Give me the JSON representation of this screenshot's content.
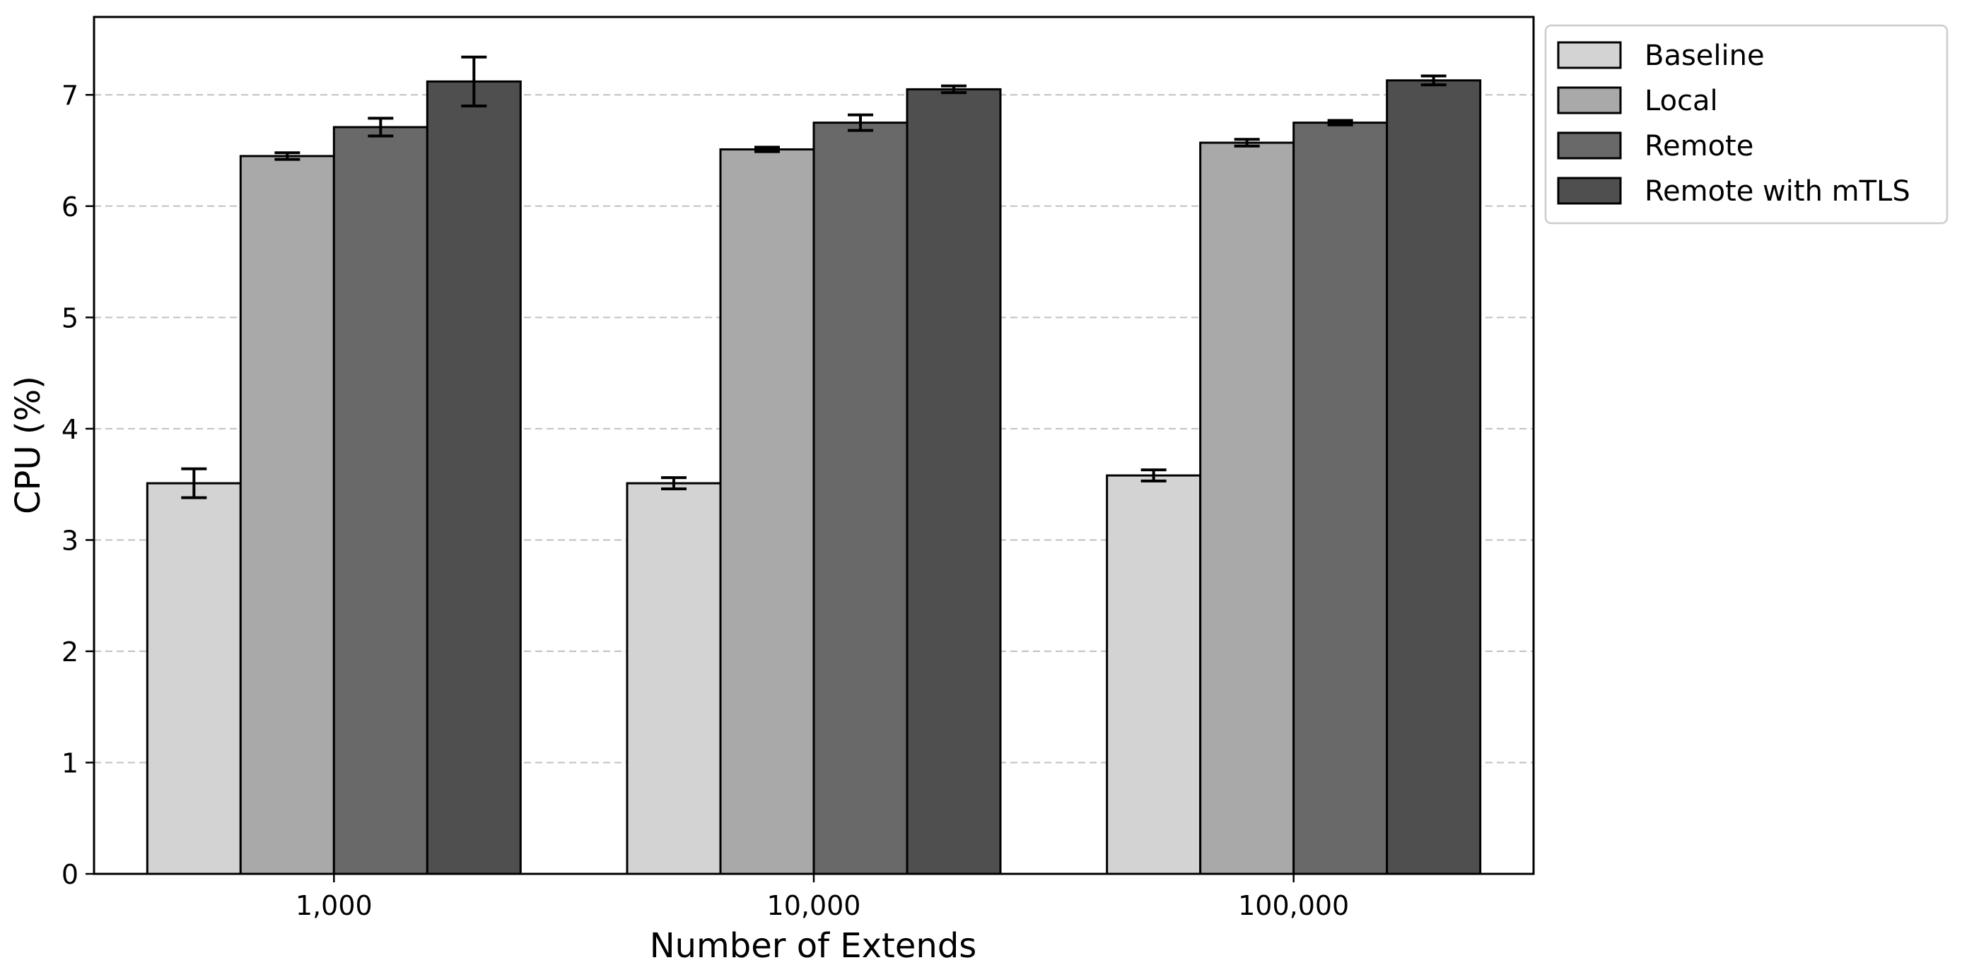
{
  "chart_data": {
    "type": "bar",
    "title": "",
    "xlabel": "Number of Extends",
    "ylabel": "CPU (%)",
    "categories": [
      "1,000",
      "10,000",
      "100,000"
    ],
    "ylim": [
      0,
      7.7
    ],
    "yticks": [
      "0",
      "1",
      "2",
      "3",
      "4",
      "5",
      "6",
      "7"
    ],
    "grid": "horizontal dashed",
    "legend_position": "outside-top-right",
    "series": [
      {
        "name": "Baseline",
        "color": "#d3d3d3",
        "values": [
          3.51,
          3.51,
          3.58
        ],
        "errors": [
          0.13,
          0.05,
          0.05
        ]
      },
      {
        "name": "Local",
        "color": "#a9a9a9",
        "values": [
          6.45,
          6.51,
          6.57
        ],
        "errors": [
          0.03,
          0.02,
          0.03
        ]
      },
      {
        "name": "Remote",
        "color": "#696969",
        "values": [
          6.71,
          6.75,
          6.75
        ],
        "errors": [
          0.08,
          0.07,
          0.02
        ]
      },
      {
        "name": "Remote with mTLS",
        "color": "#4f4f4f",
        "values": [
          7.12,
          7.05,
          7.13
        ],
        "errors": [
          0.22,
          0.03,
          0.04
        ]
      }
    ]
  }
}
